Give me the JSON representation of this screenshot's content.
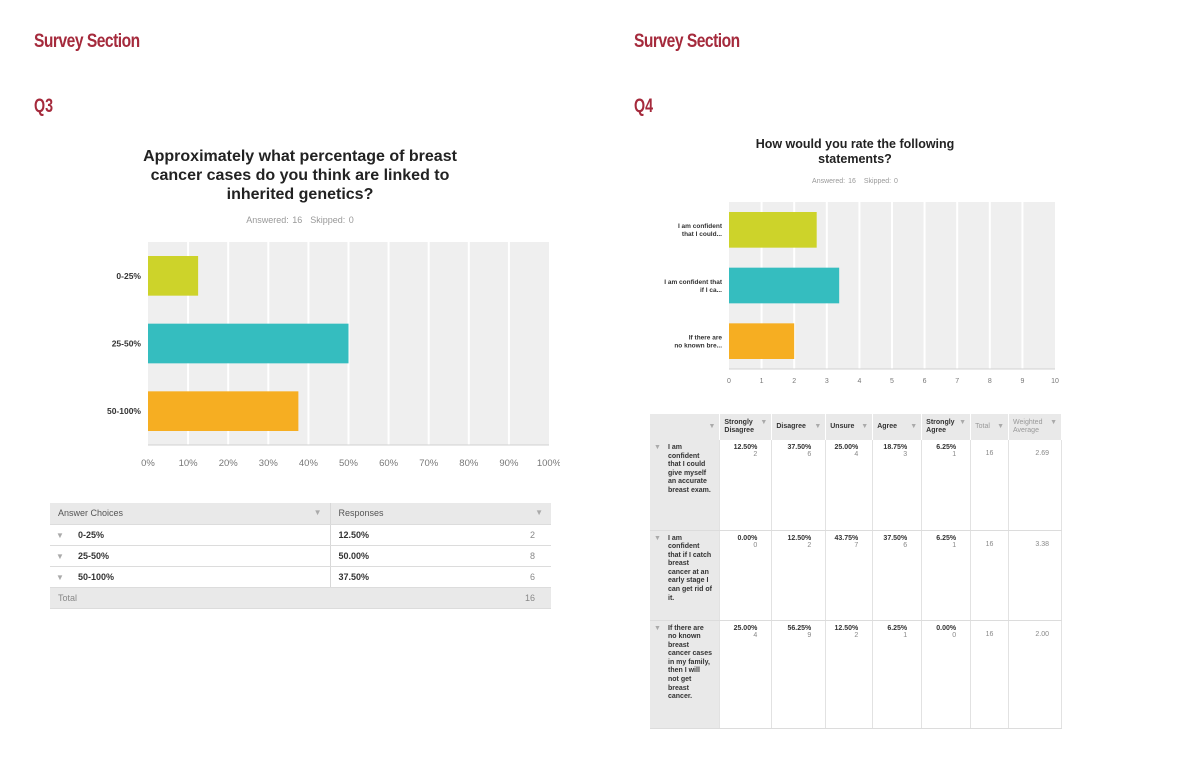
{
  "left": {
    "section_title": "Survey Section",
    "question_label": "Q3",
    "title_lines": [
      "Approximately what percentage of breast",
      "cancer cases do you think are linked to",
      "inherited genetics?"
    ],
    "answered": "Answered: 16",
    "skipped": "Skipped: 0",
    "table": {
      "headers": [
        "Answer Choices",
        "Responses"
      ],
      "rows": [
        {
          "choice": "0-25%",
          "percent": "12.50%",
          "count": "2"
        },
        {
          "choice": "25-50%",
          "percent": "50.00%",
          "count": "8"
        },
        {
          "choice": "50-100%",
          "percent": "37.50%",
          "count": "6"
        }
      ],
      "total_label": "Total",
      "total_value": "16"
    }
  },
  "right": {
    "section_title": "Survey Section",
    "question_label": "Q4",
    "title_lines": [
      "How would you rate the following",
      "statements?"
    ],
    "answered": "Answered: 16",
    "skipped": "Skipped: 0",
    "table": {
      "headers": [
        "Strongly Disagree",
        "Disagree",
        "Unsure",
        "Agree",
        "Strongly Agree",
        "Total",
        "Weighted Average"
      ],
      "rows": [
        {
          "statement": "I am confident that I could give myself an accurate breast exam.",
          "cells": [
            {
              "p": "12.50%",
              "n": "2"
            },
            {
              "p": "37.50%",
              "n": "6"
            },
            {
              "p": "25.00%",
              "n": "4"
            },
            {
              "p": "18.75%",
              "n": "3"
            },
            {
              "p": "6.25%",
              "n": "1"
            }
          ],
          "total": "16",
          "weighted_average": "2.69"
        },
        {
          "statement": "I am confident that if I catch breast cancer at an early stage I can get rid of it.",
          "cells": [
            {
              "p": "0.00%",
              "n": "0"
            },
            {
              "p": "12.50%",
              "n": "2"
            },
            {
              "p": "43.75%",
              "n": "7"
            },
            {
              "p": "37.50%",
              "n": "6"
            },
            {
              "p": "6.25%",
              "n": "1"
            }
          ],
          "total": "16",
          "weighted_average": "3.38"
        },
        {
          "statement": "If there are no known breast cancer cases in my family, then I will not get breast cancer.",
          "cells": [
            {
              "p": "25.00%",
              "n": "4"
            },
            {
              "p": "56.25%",
              "n": "9"
            },
            {
              "p": "12.50%",
              "n": "2"
            },
            {
              "p": "6.25%",
              "n": "1"
            },
            {
              "p": "0.00%",
              "n": "0"
            }
          ],
          "total": "16",
          "weighted_average": "2.00"
        }
      ]
    }
  },
  "colors": {
    "heading": "#a52a3c",
    "bar_1": "#cdd32a",
    "bar_2": "#35bdbf",
    "bar_3": "#f6ae22",
    "plot_bg": "#efefef"
  },
  "chart_data": [
    {
      "type": "bar",
      "orientation": "horizontal",
      "title": "Approximately what percentage of breast cancer cases do you think are linked to inherited genetics?",
      "subtitle": "Answered: 16 Skipped: 0",
      "categories": [
        "0-25%",
        "25-50%",
        "50-100%"
      ],
      "values": [
        12.5,
        50.0,
        37.5
      ],
      "xlabel": "",
      "ylabel": "",
      "xlim": [
        0,
        100
      ],
      "xticks": [
        "0%",
        "10%",
        "20%",
        "30%",
        "40%",
        "50%",
        "60%",
        "70%",
        "80%",
        "90%",
        "100%"
      ],
      "grid": true
    },
    {
      "type": "bar",
      "orientation": "horizontal",
      "title": "How would you rate the following statements?",
      "subtitle": "Answered: 16 Skipped: 0",
      "categories": [
        "I am confident that I could...",
        "I am confident that if I ca...",
        "If there are no known bre..."
      ],
      "values": [
        2.69,
        3.38,
        2.0
      ],
      "xlabel": "",
      "ylabel": "",
      "xlim": [
        0,
        10
      ],
      "xticks": [
        "0",
        "1",
        "2",
        "3",
        "4",
        "5",
        "6",
        "7",
        "8",
        "9",
        "10"
      ],
      "grid": true
    }
  ]
}
